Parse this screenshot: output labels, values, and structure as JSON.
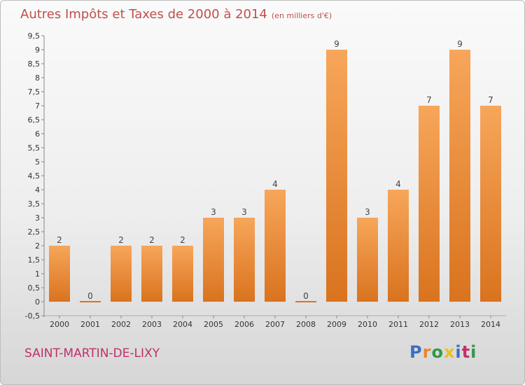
{
  "header": {
    "title": "Autres Impôts et Taxes de 2000 à 2014",
    "unit": "(en milliers d'€)"
  },
  "footer": {
    "commune": "SAINT-MARTIN-DE-LIXY",
    "logo": [
      "P",
      "r",
      "o",
      "x",
      "i",
      "t",
      "i"
    ]
  },
  "colors": {
    "bar_top": "#f7a65a",
    "bar_bottom": "#d9731e",
    "title": "#c0504d",
    "logo": [
      "#3a6fc4",
      "#e8862a",
      "#2f9a4a",
      "#e8c21e",
      "#3a6fc4",
      "#c0306a",
      "#2f9a4a"
    ]
  },
  "chart_data": {
    "type": "bar",
    "title": "Autres Impôts et Taxes de 2000 à 2014",
    "subtitle": "(en milliers d'€)",
    "xlabel": "",
    "ylabel": "",
    "categories": [
      "2000",
      "2001",
      "2002",
      "2003",
      "2004",
      "2005",
      "2006",
      "2007",
      "2008",
      "2009",
      "2010",
      "2011",
      "2012",
      "2013",
      "2014"
    ],
    "values": [
      2,
      0,
      2,
      2,
      2,
      3,
      3,
      4,
      0,
      9,
      3,
      4,
      7,
      9,
      7
    ],
    "value_labels": [
      "2",
      "0",
      "2",
      "2",
      "2",
      "3",
      "3",
      "4",
      "0",
      "9",
      "3",
      "4",
      "7",
      "9",
      "7"
    ],
    "ylim": [
      -0.5,
      9.5
    ],
    "yticks": [
      "-0,5",
      "0",
      "0,5",
      "1",
      "1,5",
      "2",
      "2,5",
      "3",
      "3,5",
      "4",
      "4,5",
      "5",
      "5,5",
      "6",
      "6,5",
      "7",
      "7,5",
      "8",
      "8,5",
      "9",
      "9,5"
    ],
    "grid": false,
    "legend": "none"
  }
}
